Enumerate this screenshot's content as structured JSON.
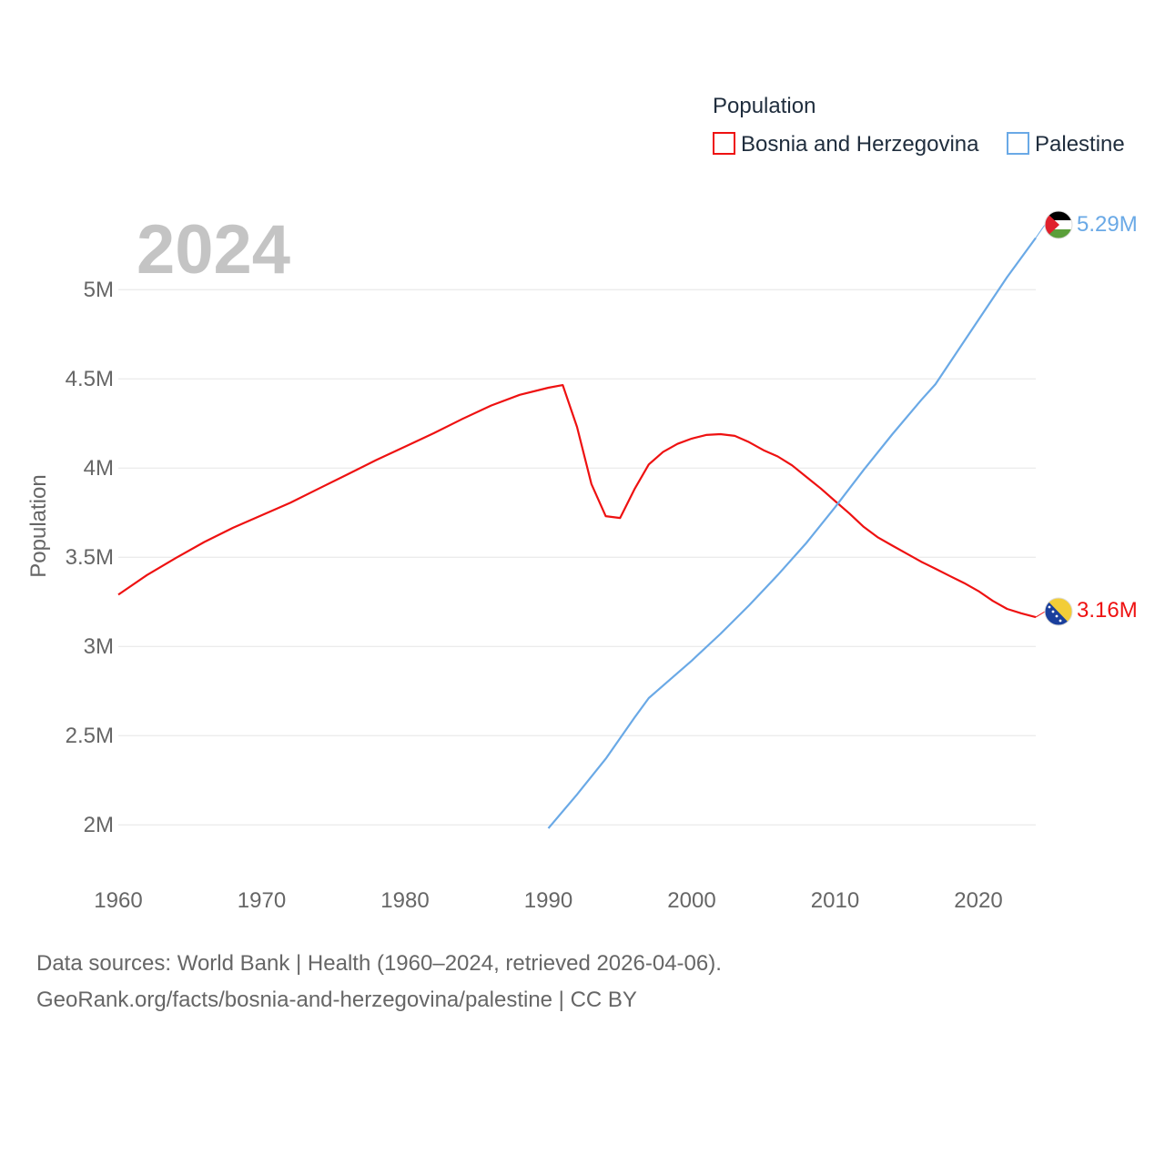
{
  "chart_data": {
    "type": "line",
    "ylabel": "Population",
    "year_label": "2024",
    "legend": {
      "title": "Population",
      "placement": "top-right"
    },
    "xlim": [
      1960,
      2024
    ],
    "ylim": [
      1700000,
      5450000
    ],
    "x_ticks": [
      1960,
      1970,
      1980,
      1990,
      2000,
      2010,
      2020
    ],
    "y_ticks": [
      {
        "value": 2000000,
        "label": "2M"
      },
      {
        "value": 2500000,
        "label": "2.5M"
      },
      {
        "value": 3000000,
        "label": "3M"
      },
      {
        "value": 3500000,
        "label": "3.5M"
      },
      {
        "value": 4000000,
        "label": "4M"
      },
      {
        "value": 4500000,
        "label": "4.5M"
      },
      {
        "value": 5000000,
        "label": "5M"
      }
    ],
    "series": [
      {
        "name": "Bosnia and Herzegovina",
        "color": "#ee1111",
        "end_label": "3.16M",
        "flag": "bosnia-flag-icon",
        "points": [
          [
            1960,
            3290000
          ],
          [
            1962,
            3400000
          ],
          [
            1964,
            3495000
          ],
          [
            1966,
            3585000
          ],
          [
            1968,
            3665000
          ],
          [
            1970,
            3735000
          ],
          [
            1972,
            3805000
          ],
          [
            1974,
            3885000
          ],
          [
            1976,
            3965000
          ],
          [
            1978,
            4045000
          ],
          [
            1980,
            4120000
          ],
          [
            1982,
            4195000
          ],
          [
            1984,
            4275000
          ],
          [
            1986,
            4350000
          ],
          [
            1988,
            4410000
          ],
          [
            1990,
            4450000
          ],
          [
            1991,
            4465000
          ],
          [
            1992,
            4230000
          ],
          [
            1993,
            3910000
          ],
          [
            1994,
            3730000
          ],
          [
            1995,
            3720000
          ],
          [
            1996,
            3880000
          ],
          [
            1997,
            4020000
          ],
          [
            1998,
            4090000
          ],
          [
            1999,
            4135000
          ],
          [
            2000,
            4165000
          ],
          [
            2001,
            4185000
          ],
          [
            2002,
            4190000
          ],
          [
            2003,
            4180000
          ],
          [
            2004,
            4145000
          ],
          [
            2005,
            4100000
          ],
          [
            2006,
            4065000
          ],
          [
            2007,
            4015000
          ],
          [
            2008,
            3950000
          ],
          [
            2009,
            3885000
          ],
          [
            2010,
            3815000
          ],
          [
            2011,
            3745000
          ],
          [
            2012,
            3670000
          ],
          [
            2013,
            3610000
          ],
          [
            2014,
            3565000
          ],
          [
            2015,
            3520000
          ],
          [
            2016,
            3475000
          ],
          [
            2017,
            3435000
          ],
          [
            2018,
            3395000
          ],
          [
            2019,
            3355000
          ],
          [
            2020,
            3310000
          ],
          [
            2021,
            3255000
          ],
          [
            2022,
            3210000
          ],
          [
            2023,
            3185000
          ],
          [
            2024,
            3164000
          ]
        ]
      },
      {
        "name": "Palestine",
        "color": "#6aa9e6",
        "end_label": "5.29M",
        "flag": "palestine-flag-icon",
        "points": [
          [
            1990,
            1980000
          ],
          [
            1992,
            2170000
          ],
          [
            1994,
            2370000
          ],
          [
            1996,
            2600000
          ],
          [
            1997,
            2710000
          ],
          [
            1998,
            2780000
          ],
          [
            2000,
            2920000
          ],
          [
            2002,
            3070000
          ],
          [
            2004,
            3230000
          ],
          [
            2006,
            3400000
          ],
          [
            2008,
            3580000
          ],
          [
            2010,
            3780000
          ],
          [
            2012,
            3990000
          ],
          [
            2014,
            4190000
          ],
          [
            2016,
            4380000
          ],
          [
            2017,
            4470000
          ],
          [
            2018,
            4590000
          ],
          [
            2020,
            4830000
          ],
          [
            2022,
            5070000
          ],
          [
            2024,
            5290000
          ]
        ]
      }
    ]
  },
  "footer": {
    "line1": "Data sources: World Bank | Health (1960–2024, retrieved 2026-04-06).",
    "line2": "GeoRank.org/facts/bosnia-and-herzegovina/palestine | CC BY"
  }
}
